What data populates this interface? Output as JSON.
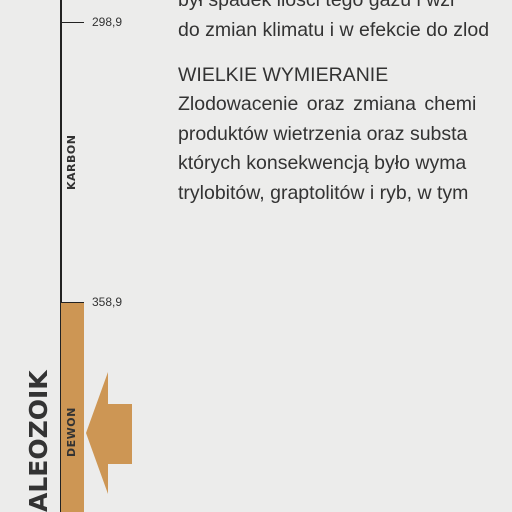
{
  "timeline": {
    "era_label": "ALEOZOIK",
    "ticks": [
      {
        "label": "298,9"
      },
      {
        "label": "358,9"
      }
    ],
    "periods": [
      {
        "name": "KARBON"
      },
      {
        "name": "DEWON"
      }
    ],
    "band_color": "#cd9654",
    "arrow_color": "#cd9654"
  },
  "content": {
    "lines_before": [
      "był spadek ilości tego gazu i wzr",
      "do zmian klimatu i w efekcie do zlod"
    ],
    "heading": "WIELKIE WYMIERANIE",
    "paragraph_lines": [
      "Zlodowacenie oraz zmiana chemi",
      "produktów wietrzenia oraz substa",
      "których konsekwencją było wyma",
      "trylobitów, graptolitów i ryb, w tym"
    ]
  }
}
